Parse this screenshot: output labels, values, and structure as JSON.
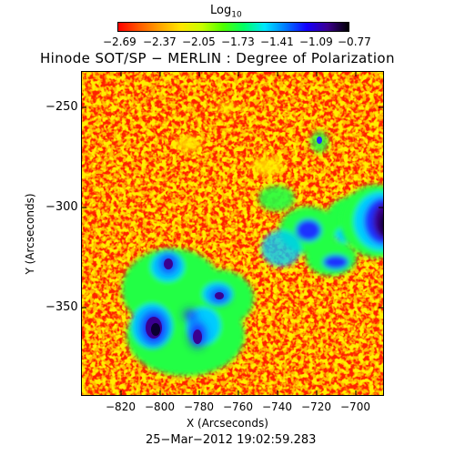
{
  "colorbar": {
    "title_main": "Log",
    "title_sub": "10",
    "ticks": [
      "−2.69",
      "−2.37",
      "−2.05",
      "−1.73",
      "−1.41",
      "−1.09",
      "−0.77"
    ],
    "colors": [
      "#ff0000",
      "#ff5a00",
      "#ffa500",
      "#ffe600",
      "#c8ff00",
      "#50ff00",
      "#00ff64",
      "#00e6ff",
      "#0078ff",
      "#1400ff",
      "#3c0090",
      "#000000"
    ]
  },
  "title": "Hinode SOT/SP − MERLIN : Degree of Polarization",
  "x_axis": {
    "label": "X (Arcseconds)",
    "ticks": [
      "−820",
      "−800",
      "−780",
      "−760",
      "−740",
      "−720",
      "−700"
    ],
    "range": [
      -832,
      -682
    ]
  },
  "y_axis": {
    "label": "Y (Arcseconds)",
    "ticks": [
      "−250",
      "−300",
      "−350"
    ],
    "range": [
      -396,
      -235
    ]
  },
  "timestamp": "25−Mar−2012 19:02:59.283",
  "map_colors": {
    "background": "#ff2200",
    "orange": "#ff8800",
    "yellow": "#ffee00",
    "green": "#22ff44",
    "cyan": "#00ccff",
    "blue": "#1a33ff",
    "violet": "#3a0090",
    "dark": "#0a0030"
  }
}
